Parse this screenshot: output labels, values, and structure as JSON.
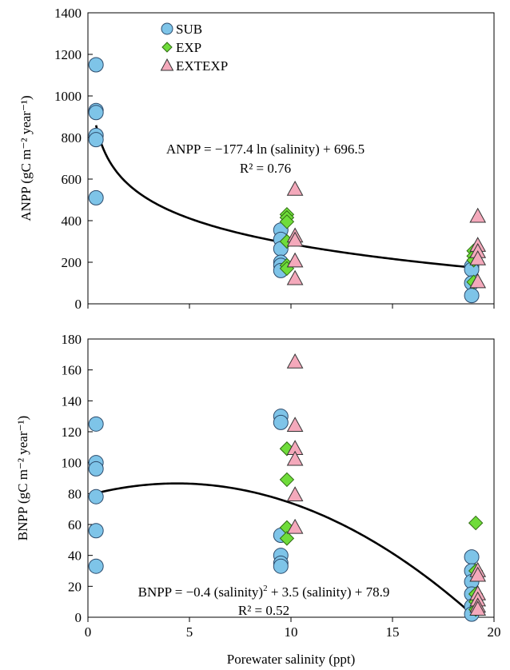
{
  "chart_data": [
    {
      "type": "scatter",
      "ylabel": "ANPP (gC m⁻² year⁻¹)",
      "xlim": [
        0,
        20
      ],
      "ylim": [
        0,
        1400
      ],
      "xticks": [
        "0",
        "5",
        "10",
        "15",
        "20"
      ],
      "yticks": [
        "0",
        "200",
        "400",
        "600",
        "800",
        "1000",
        "1200",
        "1400"
      ],
      "legend": {
        "position": "top-left",
        "entries": [
          "SUB",
          "EXP",
          "EXTEXP"
        ]
      },
      "equation": "ANPP = −177.4 ln (salinity) + 696.5",
      "r2_label": "R² = 0.76",
      "fit": {
        "kind": "log",
        "a": -177.4,
        "b": 696.5
      },
      "series": [
        {
          "name": "SUB",
          "color": "#7ec4e8",
          "marker": "circle",
          "points": [
            [
              0.4,
              1150
            ],
            [
              0.4,
              930
            ],
            [
              0.4,
              920
            ],
            [
              0.4,
              810
            ],
            [
              0.4,
              790
            ],
            [
              0.4,
              510
            ],
            [
              9.5,
              355
            ],
            [
              9.5,
              310
            ],
            [
              9.5,
              265
            ],
            [
              9.5,
              200
            ],
            [
              9.5,
              185
            ],
            [
              9.5,
              160
            ],
            [
              18.9,
              180
            ],
            [
              18.9,
              165
            ],
            [
              18.9,
              100
            ],
            [
              18.9,
              40
            ]
          ]
        },
        {
          "name": "EXP",
          "color": "#6fdc3a",
          "marker": "diamond",
          "points": [
            [
              9.8,
              430
            ],
            [
              9.8,
              415
            ],
            [
              9.8,
              395
            ],
            [
              9.8,
              300
            ],
            [
              9.8,
              185
            ],
            [
              9.8,
              170
            ],
            [
              19.0,
              255
            ],
            [
              19.0,
              230
            ],
            [
              19.0,
              210
            ],
            [
              19.0,
              105
            ]
          ]
        },
        {
          "name": "EXTEXP",
          "color": "#f4a9bb",
          "marker": "triangle",
          "points": [
            [
              10.2,
              550
            ],
            [
              10.2,
              325
            ],
            [
              10.2,
              305
            ],
            [
              10.2,
              205
            ],
            [
              10.2,
              120
            ],
            [
              19.2,
              420
            ],
            [
              19.2,
              280
            ],
            [
              19.2,
              250
            ],
            [
              19.2,
              215
            ],
            [
              19.2,
              105
            ]
          ]
        }
      ]
    },
    {
      "type": "scatter",
      "ylabel": "BNPP (gC m⁻² year⁻¹)",
      "xlabel": "Porewater salinity (ppt)",
      "xlim": [
        0,
        20
      ],
      "ylim": [
        0,
        180
      ],
      "xticks": [
        "0",
        "5",
        "10",
        "15",
        "20"
      ],
      "yticks": [
        "0",
        "20",
        "40",
        "60",
        "80",
        "100",
        "120",
        "140",
        "160",
        "180"
      ],
      "equation_prefix": "BNPP = −0.4 (salinity)",
      "equation_suffix": " + 3.5 (salinity) + 78.9",
      "r2_label": "R² = 0.52",
      "fit": {
        "kind": "quadratic",
        "a": -0.4,
        "b": 3.5,
        "c": 78.9
      },
      "series": [
        {
          "name": "SUB",
          "color": "#7ec4e8",
          "marker": "circle",
          "points": [
            [
              0.4,
              125
            ],
            [
              0.4,
              100
            ],
            [
              0.4,
              96
            ],
            [
              0.4,
              78
            ],
            [
              0.4,
              56
            ],
            [
              0.4,
              33
            ],
            [
              9.5,
              130
            ],
            [
              9.5,
              126
            ],
            [
              9.5,
              53
            ],
            [
              9.5,
              40
            ],
            [
              9.5,
              35
            ],
            [
              9.5,
              33
            ],
            [
              18.9,
              39
            ],
            [
              18.9,
              30
            ],
            [
              18.9,
              23
            ],
            [
              18.9,
              15
            ],
            [
              18.9,
              7
            ],
            [
              18.9,
              2
            ]
          ]
        },
        {
          "name": "EXP",
          "color": "#6fdc3a",
          "marker": "diamond",
          "points": [
            [
              9.8,
              109
            ],
            [
              9.8,
              89
            ],
            [
              9.8,
              58
            ],
            [
              9.8,
              51
            ],
            [
              19.1,
              61
            ],
            [
              19.1,
              30
            ],
            [
              19.1,
              15
            ],
            [
              19.1,
              10
            ],
            [
              19.1,
              5
            ]
          ]
        },
        {
          "name": "EXTEXP",
          "color": "#f4a9bb",
          "marker": "triangle",
          "points": [
            [
              10.2,
              165
            ],
            [
              10.2,
              124
            ],
            [
              10.2,
              109
            ],
            [
              10.2,
              102
            ],
            [
              10.2,
              79
            ],
            [
              10.2,
              58
            ],
            [
              19.2,
              30
            ],
            [
              19.2,
              27
            ],
            [
              19.2,
              15
            ],
            [
              19.2,
              11
            ],
            [
              19.2,
              7
            ],
            [
              19.2,
              5
            ]
          ]
        }
      ]
    }
  ]
}
